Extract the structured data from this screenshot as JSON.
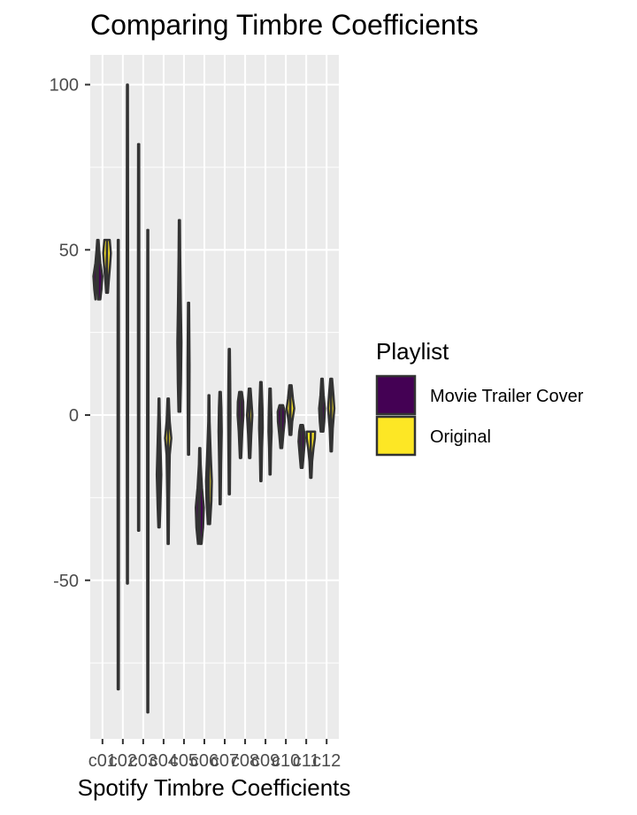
{
  "chart_data": {
    "type": "violin",
    "title": "Comparing Timbre Coefficients",
    "xlabel": "Spotify Timbre Coefficients",
    "ylabel": "",
    "categories": [
      "c01",
      "c02",
      "c03",
      "c04",
      "c05",
      "c06",
      "c07",
      "c08",
      "c09",
      "c10",
      "c11",
      "c12"
    ],
    "x_tick_labels": [
      "c01",
      "c02",
      "c03",
      "c04",
      "c05",
      "c06",
      "c07",
      "c08",
      "c09",
      "c10",
      "c11",
      "c12"
    ],
    "y_ticks": [
      -50,
      0,
      50,
      100
    ],
    "ylim": [
      -98,
      109
    ],
    "grid": true,
    "legend_position": "right",
    "legend_title": "Playlist",
    "series": [
      {
        "name": "Movie Trailer Cover",
        "color": "#440154",
        "violins": [
          {
            "category": "c01",
            "min": 35,
            "max": 53,
            "profile": [
              [
                35,
                0.55
              ],
              [
                38,
                0.8
              ],
              [
                42,
                1.0
              ],
              [
                46,
                0.55
              ],
              [
                50,
                0.3
              ],
              [
                53,
                0.15
              ]
            ]
          },
          {
            "category": "c02",
            "min": -83,
            "max": 53,
            "profile": [
              [
                -83,
                0.12
              ],
              [
                -40,
                0.14
              ],
              [
                0,
                0.15
              ],
              [
                30,
                0.14
              ],
              [
                53,
                0.1
              ]
            ]
          },
          {
            "category": "c03",
            "min": -35,
            "max": 82,
            "profile": [
              [
                -35,
                0.12
              ],
              [
                0,
                0.14
              ],
              [
                40,
                0.15
              ],
              [
                82,
                0.12
              ]
            ]
          },
          {
            "category": "c04",
            "min": -34,
            "max": 5,
            "profile": [
              [
                -34,
                0.15
              ],
              [
                -28,
                0.3
              ],
              [
                -18,
                0.5
              ],
              [
                -8,
                0.3
              ],
              [
                0,
                0.15
              ],
              [
                5,
                0.1
              ]
            ]
          },
          {
            "category": "c05",
            "min": 1,
            "max": 59,
            "profile": [
              [
                1,
                0.2
              ],
              [
                10,
                0.35
              ],
              [
                22,
                0.45
              ],
              [
                35,
                0.3
              ],
              [
                48,
                0.18
              ],
              [
                59,
                0.12
              ]
            ]
          },
          {
            "category": "c06",
            "min": -39,
            "max": -10,
            "profile": [
              [
                -39,
                0.4
              ],
              [
                -34,
                0.75
              ],
              [
                -28,
                0.9
              ],
              [
                -22,
                0.5
              ],
              [
                -15,
                0.2
              ],
              [
                -10,
                0.12
              ]
            ]
          },
          {
            "category": "c07",
            "min": -27,
            "max": 7,
            "profile": [
              [
                -27,
                0.12
              ],
              [
                -15,
                0.22
              ],
              [
                -5,
                0.35
              ],
              [
                2,
                0.28
              ],
              [
                7,
                0.15
              ]
            ]
          },
          {
            "category": "c08",
            "min": -13,
            "max": 7,
            "profile": [
              [
                -13,
                0.15
              ],
              [
                -5,
                0.4
              ],
              [
                0,
                0.65
              ],
              [
                4,
                0.6
              ],
              [
                7,
                0.3
              ]
            ]
          },
          {
            "category": "c09",
            "min": -20,
            "max": 10,
            "profile": [
              [
                -20,
                0.12
              ],
              [
                -10,
                0.25
              ],
              [
                -4,
                0.4
              ],
              [
                2,
                0.35
              ],
              [
                10,
                0.15
              ]
            ]
          },
          {
            "category": "c10",
            "min": -10,
            "max": 3,
            "profile": [
              [
                -10,
                0.2
              ],
              [
                -6,
                0.45
              ],
              [
                -2,
                0.75
              ],
              [
                1,
                0.8
              ],
              [
                3,
                0.4
              ]
            ]
          },
          {
            "category": "c11",
            "min": -16,
            "max": -3,
            "profile": [
              [
                -16,
                0.2
              ],
              [
                -12,
                0.45
              ],
              [
                -8,
                0.7
              ],
              [
                -5,
                0.55
              ],
              [
                -3,
                0.3
              ]
            ]
          },
          {
            "category": "c12",
            "min": -5,
            "max": 11,
            "profile": [
              [
                -5,
                0.3
              ],
              [
                -2,
                0.5
              ],
              [
                2,
                0.65
              ],
              [
                6,
                0.35
              ],
              [
                11,
                0.15
              ]
            ]
          }
        ]
      },
      {
        "name": "Original",
        "color": "#fde725",
        "violins": [
          {
            "category": "c01",
            "min": 37,
            "max": 53,
            "profile": [
              [
                37,
                0.2
              ],
              [
                40,
                0.35
              ],
              [
                45,
                0.65
              ],
              [
                49,
                0.85
              ],
              [
                53,
                0.6
              ]
            ]
          },
          {
            "category": "c02",
            "min": -51,
            "max": 100,
            "profile": [
              [
                -51,
                0.1
              ],
              [
                0,
                0.14
              ],
              [
                50,
                0.15
              ],
              [
                100,
                0.1
              ]
            ]
          },
          {
            "category": "c03",
            "min": -90,
            "max": 56,
            "profile": [
              [
                -90,
                0.1
              ],
              [
                -40,
                0.14
              ],
              [
                0,
                0.15
              ],
              [
                56,
                0.1
              ]
            ]
          },
          {
            "category": "c04",
            "min": -39,
            "max": 5,
            "profile": [
              [
                -39,
                0.12
              ],
              [
                -25,
                0.2
              ],
              [
                -12,
                0.35
              ],
              [
                -7,
                0.7
              ],
              [
                -2,
                0.35
              ],
              [
                5,
                0.15
              ]
            ]
          },
          {
            "category": "c05",
            "min": -12,
            "max": 34,
            "profile": [
              [
                -12,
                0.12
              ],
              [
                0,
                0.18
              ],
              [
                15,
                0.22
              ],
              [
                34,
                0.12
              ]
            ]
          },
          {
            "category": "c06",
            "min": -33,
            "max": 6,
            "profile": [
              [
                -33,
                0.25
              ],
              [
                -26,
                0.55
              ],
              [
                -20,
                0.65
              ],
              [
                -12,
                0.4
              ],
              [
                -2,
                0.15
              ],
              [
                6,
                0.1
              ]
            ]
          },
          {
            "category": "c07",
            "min": -24,
            "max": 20,
            "profile": [
              [
                -24,
                0.12
              ],
              [
                -10,
                0.2
              ],
              [
                0,
                0.25
              ],
              [
                10,
                0.2
              ],
              [
                20,
                0.12
              ]
            ]
          },
          {
            "category": "c08",
            "min": -13,
            "max": 8,
            "profile": [
              [
                -13,
                0.15
              ],
              [
                -6,
                0.35
              ],
              [
                0,
                0.6
              ],
              [
                4,
                0.4
              ],
              [
                8,
                0.2
              ]
            ]
          },
          {
            "category": "c09",
            "min": -18,
            "max": 8,
            "profile": [
              [
                -18,
                0.12
              ],
              [
                -10,
                0.22
              ],
              [
                -5,
                0.35
              ],
              [
                0,
                0.3
              ],
              [
                8,
                0.15
              ]
            ]
          },
          {
            "category": "c10",
            "min": -6,
            "max": 9,
            "profile": [
              [
                -6,
                0.2
              ],
              [
                -2,
                0.4
              ],
              [
                2,
                0.85
              ],
              [
                5,
                0.55
              ],
              [
                9,
                0.25
              ]
            ]
          },
          {
            "category": "c11",
            "min": -19,
            "max": -5,
            "profile": [
              [
                -19,
                0.15
              ],
              [
                -14,
                0.3
              ],
              [
                -10,
                0.6
              ],
              [
                -7,
                0.9
              ],
              [
                -5,
                0.95
              ]
            ]
          },
          {
            "category": "c12",
            "min": -11,
            "max": 11,
            "profile": [
              [
                -11,
                0.15
              ],
              [
                -4,
                0.35
              ],
              [
                2,
                0.7
              ],
              [
                6,
                0.5
              ],
              [
                11,
                0.2
              ]
            ]
          }
        ]
      }
    ]
  }
}
